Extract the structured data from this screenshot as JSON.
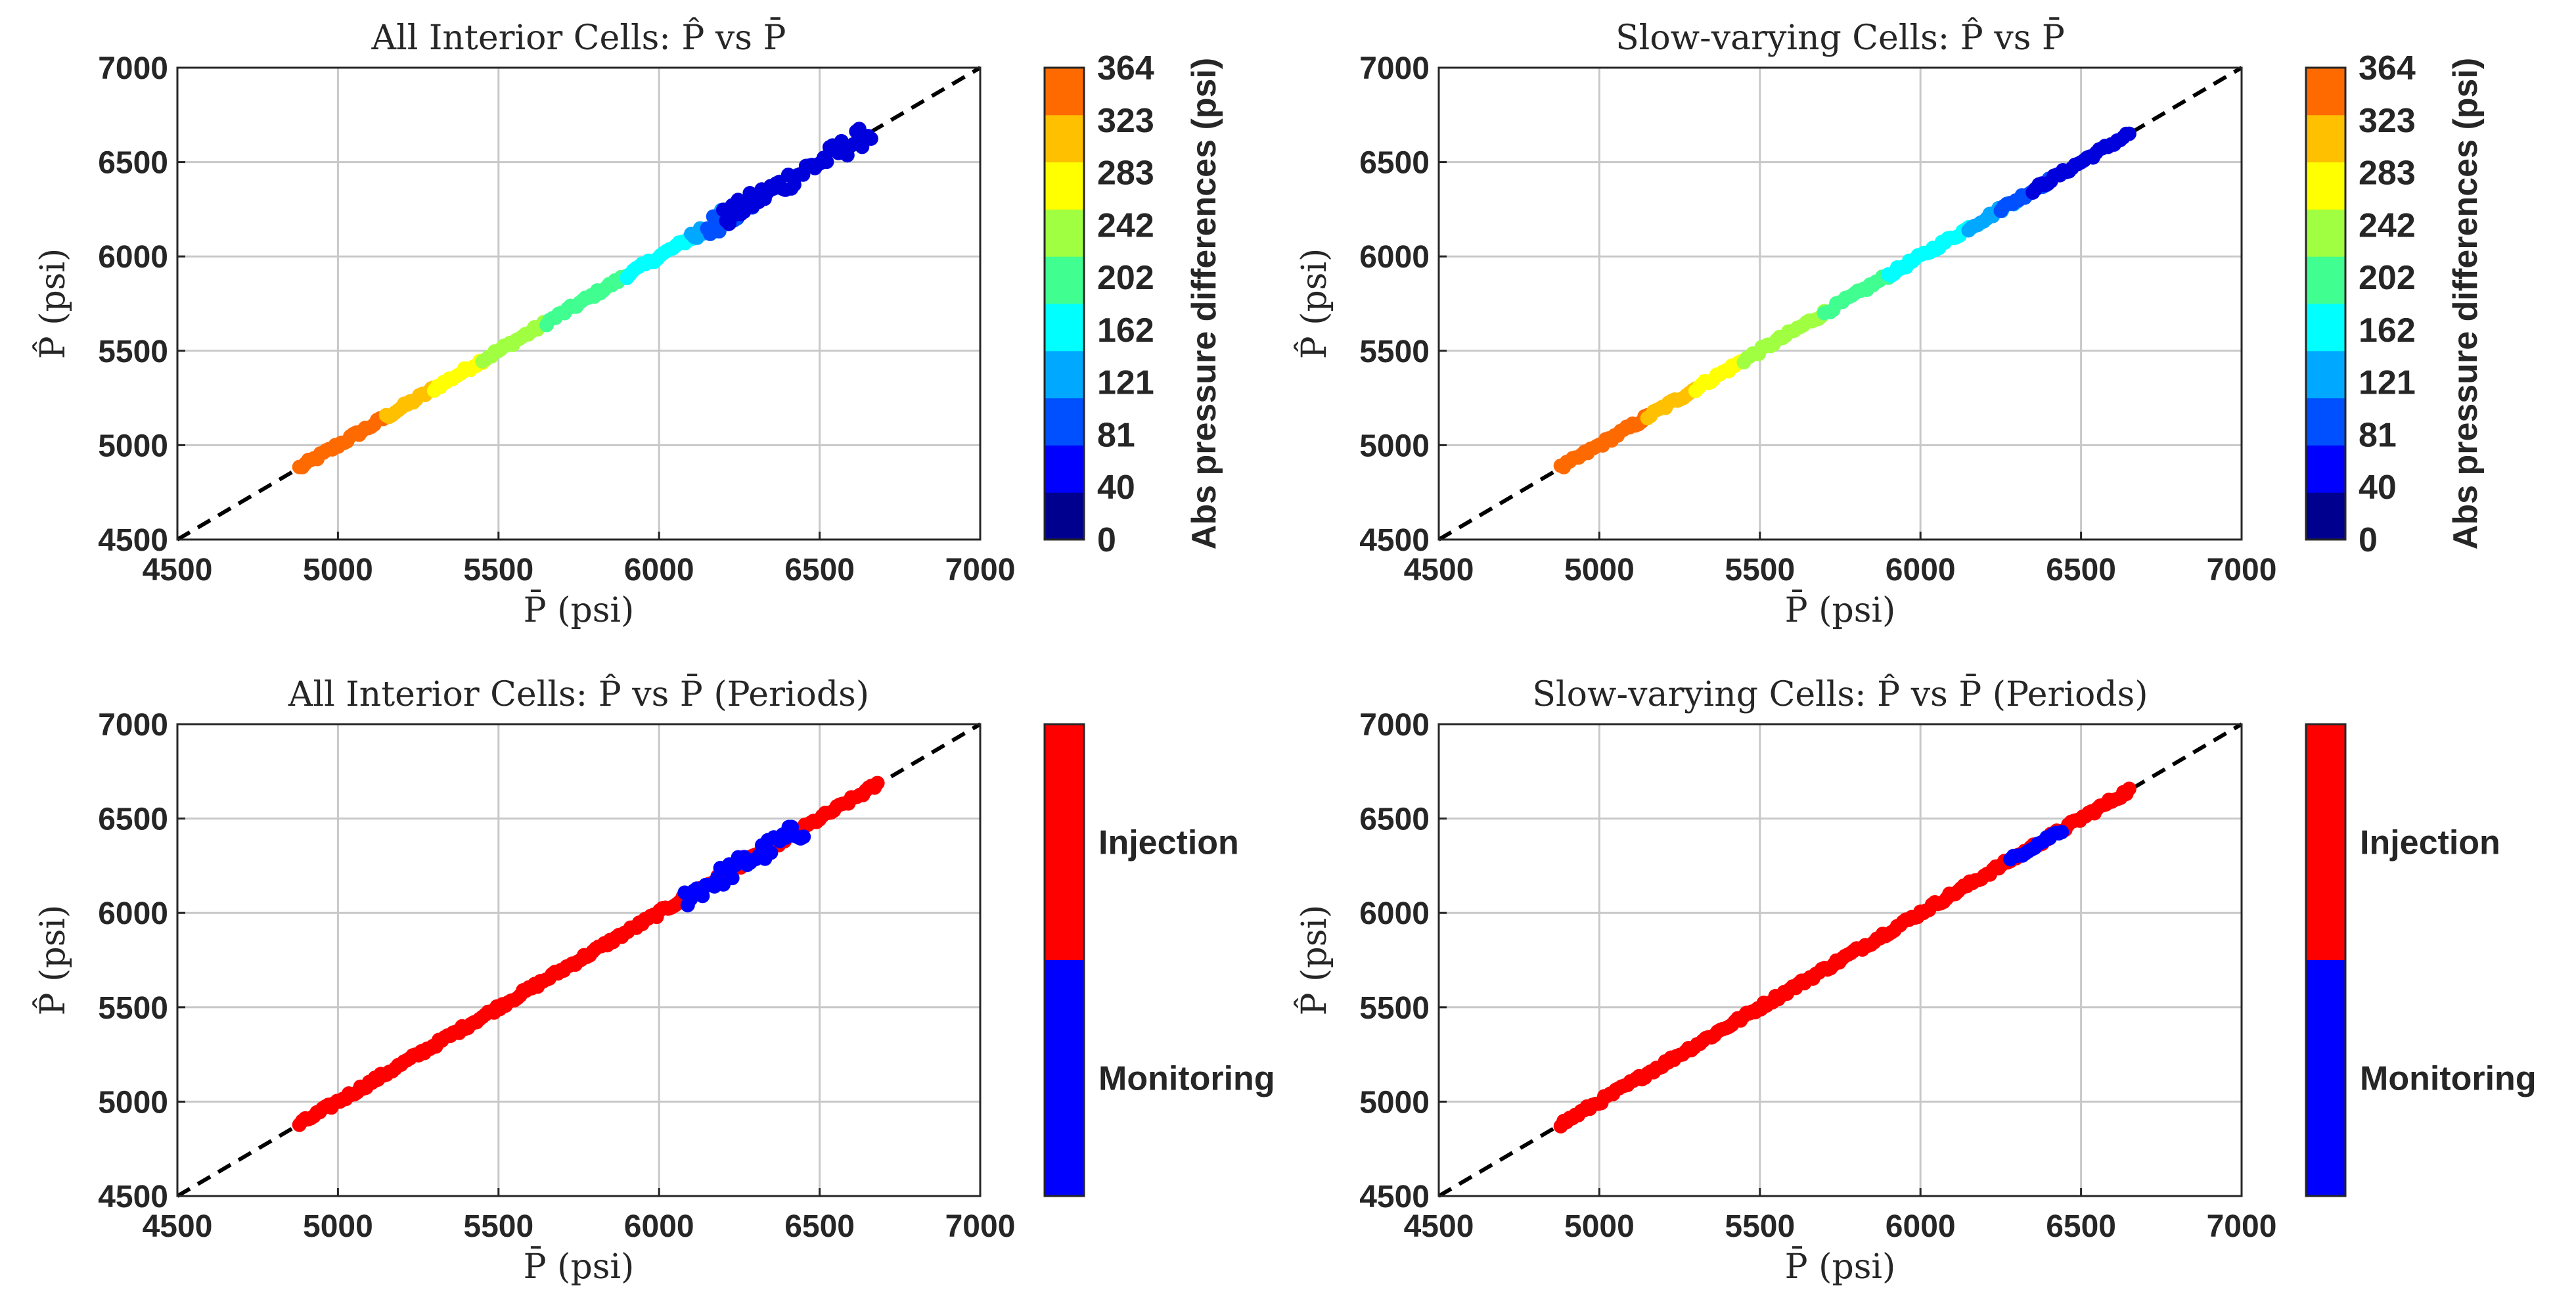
{
  "chart_data": [
    {
      "type": "scatter",
      "title": "All Interior Cells: P̂ vs P̄",
      "xlabel": "P̄ (psi)",
      "ylabel": "P̂ (psi)",
      "xlim": [
        4500,
        7000
      ],
      "ylim": [
        4500,
        7000
      ],
      "xticks": [
        "4500",
        "5000",
        "5500",
        "6000",
        "6500",
        "7000"
      ],
      "yticks": [
        "4500",
        "5000",
        "5500",
        "6000",
        "6500",
        "7000"
      ],
      "grid": true,
      "reference_line": "y = x (dashed)",
      "points_from": 4880,
      "points_to": 6660,
      "colorbar": {
        "type": "continuous",
        "label": "Abs pressure differences (psi)",
        "ticks": [
          "0",
          "40",
          "81",
          "121",
          "162",
          "202",
          "242",
          "283",
          "323",
          "364"
        ]
      },
      "series": [
        {
          "color": "#ff6a00",
          "x_range": [
            4880,
            5150
          ]
        },
        {
          "color": "#ffc000",
          "x_range": [
            5150,
            5300
          ]
        },
        {
          "color": "#ffff00",
          "x_range": [
            5300,
            5450
          ]
        },
        {
          "color": "#a0ff40",
          "x_range": [
            5450,
            5650
          ]
        },
        {
          "color": "#40ff90",
          "x_range": [
            5650,
            5900
          ]
        },
        {
          "color": "#00ffff",
          "x_range": [
            5900,
            6100
          ]
        },
        {
          "color": "#00a8ff",
          "x_range": [
            6100,
            6250
          ]
        },
        {
          "color": "#0050ff",
          "x_range": [
            6150,
            6300
          ]
        },
        {
          "color": "#0000dd",
          "x_range": [
            6200,
            6660
          ]
        }
      ]
    },
    {
      "type": "scatter",
      "title": "Slow-varying Cells: P̂ vs P̄",
      "xlabel": "P̄ (psi)",
      "ylabel": "P̂ (psi)",
      "xlim": [
        4500,
        7000
      ],
      "ylim": [
        4500,
        7000
      ],
      "xticks": [
        "4500",
        "5000",
        "5500",
        "6000",
        "6500",
        "7000"
      ],
      "yticks": [
        "4500",
        "5000",
        "5500",
        "6000",
        "6500",
        "7000"
      ],
      "grid": true,
      "reference_line": "y = x (dashed)",
      "points_from": 4880,
      "points_to": 6650,
      "colorbar": {
        "type": "continuous",
        "label": "Abs pressure differences (psi)",
        "ticks": [
          "0",
          "40",
          "81",
          "121",
          "162",
          "202",
          "242",
          "283",
          "323",
          "364"
        ]
      },
      "series": [
        {
          "color": "#ff6a00",
          "x_range": [
            4880,
            5150
          ]
        },
        {
          "color": "#ffc000",
          "x_range": [
            5150,
            5300
          ]
        },
        {
          "color": "#ffff00",
          "x_range": [
            5300,
            5450
          ]
        },
        {
          "color": "#a0ff40",
          "x_range": [
            5450,
            5700
          ]
        },
        {
          "color": "#40ff90",
          "x_range": [
            5700,
            5900
          ]
        },
        {
          "color": "#00ffff",
          "x_range": [
            5900,
            6150
          ]
        },
        {
          "color": "#00a8ff",
          "x_range": [
            6150,
            6300
          ]
        },
        {
          "color": "#0050ff",
          "x_range": [
            6250,
            6400
          ]
        },
        {
          "color": "#0000dd",
          "x_range": [
            6350,
            6650
          ]
        }
      ]
    },
    {
      "type": "scatter",
      "title": "All Interior Cells: P̂ vs P̄ (Periods)",
      "xlabel": "P̄ (psi)",
      "ylabel": "P̂ (psi)",
      "xlim": [
        4500,
        7000
      ],
      "ylim": [
        4500,
        7000
      ],
      "xticks": [
        "4500",
        "5000",
        "5500",
        "6000",
        "6500",
        "7000"
      ],
      "yticks": [
        "4500",
        "5000",
        "5500",
        "6000",
        "6500",
        "7000"
      ],
      "grid": true,
      "reference_line": "y = x (dashed)",
      "points_from": 4880,
      "points_to": 6680,
      "colorbar": {
        "type": "categorical",
        "categories": [
          {
            "label": "Injection",
            "color": "#ff0000"
          },
          {
            "label": "Monitoring",
            "color": "#0000ff"
          }
        ]
      },
      "series": [
        {
          "name": "Injection",
          "color": "#ff0000",
          "x_range": [
            4880,
            6680
          ]
        },
        {
          "name": "Monitoring",
          "color": "#0000ff",
          "x_range": [
            6080,
            6450
          ]
        }
      ]
    },
    {
      "type": "scatter",
      "title": "Slow-varying Cells: P̂ vs P̄ (Periods)",
      "xlabel": "P̄ (psi)",
      "ylabel": "P̂ (psi)",
      "xlim": [
        4500,
        7000
      ],
      "ylim": [
        4500,
        7000
      ],
      "xticks": [
        "4500",
        "5000",
        "5500",
        "6000",
        "6500",
        "7000"
      ],
      "yticks": [
        "4500",
        "5000",
        "5500",
        "6000",
        "6500",
        "7000"
      ],
      "grid": true,
      "reference_line": "y = x (dashed)",
      "points_from": 4880,
      "points_to": 6650,
      "colorbar": {
        "type": "categorical",
        "categories": [
          {
            "label": "Injection",
            "color": "#ff0000"
          },
          {
            "label": "Monitoring",
            "color": "#0000ff"
          }
        ]
      },
      "series": [
        {
          "name": "Injection",
          "color": "#ff0000",
          "x_range": [
            4880,
            6650
          ]
        },
        {
          "name": "Monitoring",
          "color": "#0000ff",
          "x_range": [
            6280,
            6440
          ]
        }
      ]
    }
  ]
}
